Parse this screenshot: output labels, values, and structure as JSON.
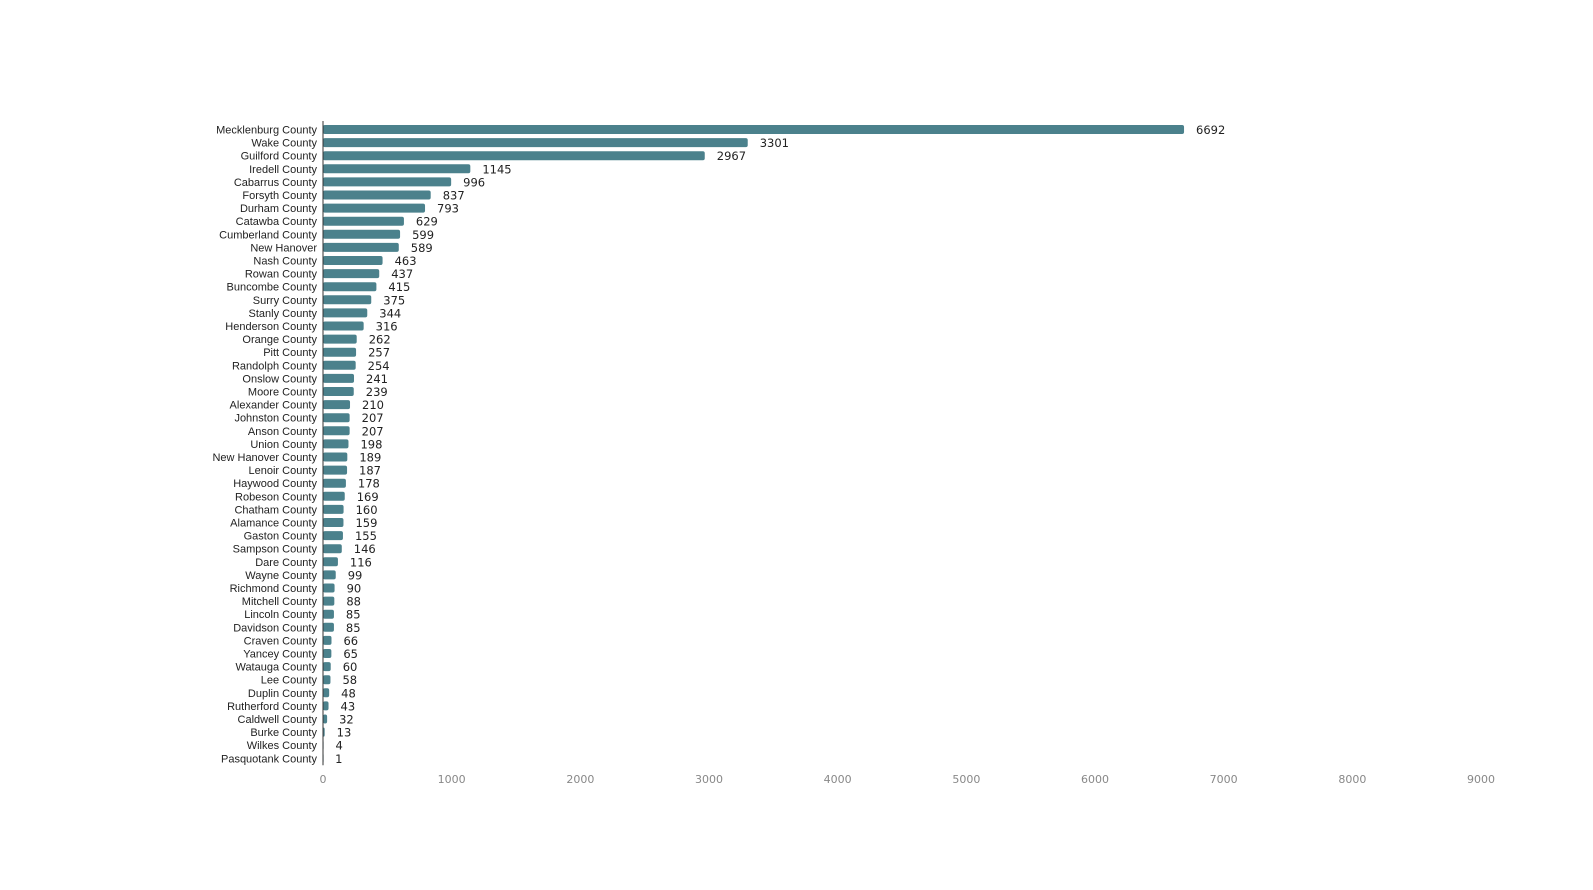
{
  "chart_data": {
    "type": "bar",
    "orientation": "horizontal",
    "title": "",
    "xlabel": "",
    "ylabel": "",
    "xlim": [
      0,
      9000
    ],
    "x_ticks": [
      "0",
      "1000",
      "2000",
      "3000",
      "4000",
      "5000",
      "6000",
      "7000",
      "8000",
      "9000"
    ],
    "grid": false,
    "bar_color": "#4b818c",
    "categories": [
      "Mecklenburg County",
      "Wake County",
      "Guilford County",
      "Iredell County",
      "Cabarrus County",
      "Forsyth County",
      "Durham County",
      "Catawba County",
      "Cumberland County",
      "New Hanover",
      "Nash County",
      "Rowan County",
      "Buncombe County",
      "Surry County",
      "Stanly County",
      "Henderson County",
      "Orange County",
      "Pitt County",
      "Randolph County",
      "Onslow County",
      "Moore County",
      "Alexander County",
      "Johnston County",
      "Anson County",
      "Union County",
      "New Hanover County",
      "Lenoir County",
      "Haywood County",
      "Robeson County",
      "Chatham County",
      "Alamance County",
      "Gaston County",
      "Sampson County",
      "Dare County",
      "Wayne County",
      "Richmond County",
      "Mitchell County",
      "Lincoln County",
      "Davidson County",
      "Craven County",
      "Yancey County",
      "Watauga County",
      "Lee County",
      "Duplin County",
      "Rutherford County",
      "Caldwell County",
      "Burke County",
      "Wilkes County",
      "Pasquotank County"
    ],
    "values": [
      6692,
      3301,
      2967,
      1145,
      996,
      837,
      793,
      629,
      599,
      589,
      463,
      437,
      415,
      375,
      344,
      316,
      262,
      257,
      254,
      241,
      239,
      210,
      207,
      207,
      198,
      189,
      187,
      178,
      169,
      160,
      159,
      155,
      146,
      116,
      99,
      90,
      88,
      85,
      85,
      66,
      65,
      60,
      58,
      48,
      43,
      32,
      13,
      4,
      1
    ]
  }
}
